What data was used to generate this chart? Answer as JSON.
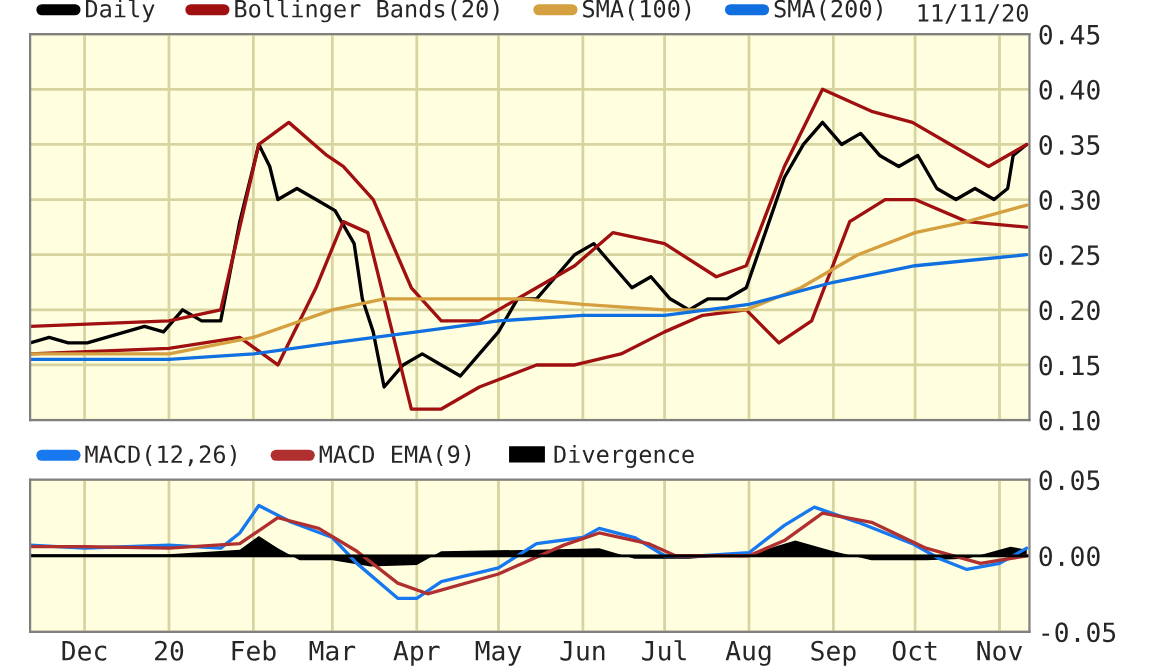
{
  "chart_data": [
    {
      "type": "line",
      "annotations": [
        "11/11/20"
      ],
      "legend": "top",
      "grid": true,
      "tick_labels": "y",
      "xlim": [
        "2019-11-11",
        "2020-11-12"
      ],
      "xticks": [
        {
          "value": "2019-12-01",
          "label": null
        },
        {
          "value": "2020-01-01",
          "label": null
        },
        {
          "value": "2020-02-01",
          "label": null
        },
        {
          "value": "2020-03-01",
          "label": null
        },
        {
          "value": "2020-04-01",
          "label": null
        },
        {
          "value": "2020-05-01",
          "label": null
        },
        {
          "value": "2020-06-01",
          "label": null
        },
        {
          "value": "2020-07-01",
          "label": null
        },
        {
          "value": "2020-08-01",
          "label": null
        },
        {
          "value": "2020-09-01",
          "label": null
        },
        {
          "value": "2020-10-01",
          "label": null
        },
        {
          "value": "2020-11-01",
          "label": null
        }
      ],
      "ylim": [
        0.1,
        0.45
      ],
      "yticks": [
        {
          "value": 0.1,
          "label": "0.10"
        },
        {
          "value": 0.15,
          "label": "0.15"
        },
        {
          "value": 0.2,
          "label": "0.20"
        },
        {
          "value": 0.25,
          "label": "0.25"
        },
        {
          "value": 0.3,
          "label": "0.30"
        },
        {
          "value": 0.35,
          "label": "0.35"
        },
        {
          "value": 0.4,
          "label": "0.40"
        },
        {
          "value": 0.45,
          "label": "0.45"
        }
      ],
      "series": [
        {
          "name": "Daily",
          "color": "#000000",
          "x": [
            "2019-11-11",
            "2019-11-18",
            "2019-11-25",
            "2019-12-02",
            "2019-12-09",
            "2019-12-16",
            "2019-12-23",
            "2019-12-30",
            "2020-01-06",
            "2020-01-13",
            "2020-01-20",
            "2020-01-27",
            "2020-02-03",
            "2020-02-07",
            "2020-02-10",
            "2020-02-17",
            "2020-02-24",
            "2020-03-02",
            "2020-03-09",
            "2020-03-12",
            "2020-03-16",
            "2020-03-20",
            "2020-03-27",
            "2020-04-03",
            "2020-04-10",
            "2020-04-17",
            "2020-04-24",
            "2020-05-01",
            "2020-05-08",
            "2020-05-15",
            "2020-05-22",
            "2020-05-29",
            "2020-06-05",
            "2020-06-12",
            "2020-06-19",
            "2020-06-26",
            "2020-07-03",
            "2020-07-10",
            "2020-07-17",
            "2020-07-24",
            "2020-07-31",
            "2020-08-07",
            "2020-08-14",
            "2020-08-21",
            "2020-08-28",
            "2020-09-04",
            "2020-09-11",
            "2020-09-18",
            "2020-09-25",
            "2020-10-02",
            "2020-10-09",
            "2020-10-16",
            "2020-10-23",
            "2020-10-30",
            "2020-11-04",
            "2020-11-06",
            "2020-11-11"
          ],
          "values": [
            0.17,
            0.175,
            0.17,
            0.17,
            0.175,
            0.18,
            0.185,
            0.18,
            0.2,
            0.19,
            0.19,
            0.28,
            0.35,
            0.33,
            0.3,
            0.31,
            0.3,
            0.29,
            0.26,
            0.21,
            0.18,
            0.13,
            0.15,
            0.16,
            0.15,
            0.14,
            0.16,
            0.18,
            0.21,
            0.21,
            0.23,
            0.25,
            0.26,
            0.24,
            0.22,
            0.23,
            0.21,
            0.2,
            0.21,
            0.21,
            0.22,
            0.27,
            0.32,
            0.35,
            0.37,
            0.35,
            0.36,
            0.34,
            0.33,
            0.34,
            0.31,
            0.3,
            0.31,
            0.3,
            0.31,
            0.34,
            0.35
          ]
        },
        {
          "name": "Bollinger Bands(20)",
          "color": "#a01010",
          "x": [
            "2019-11-11",
            "2020-01-01",
            "2020-01-20",
            "2020-02-03",
            "2020-02-14",
            "2020-02-28",
            "2020-03-05",
            "2020-03-16",
            "2020-03-30",
            "2020-04-10",
            "2020-04-24",
            "2020-05-08",
            "2020-05-29",
            "2020-06-12",
            "2020-07-01",
            "2020-07-20",
            "2020-07-31",
            "2020-08-14",
            "2020-08-28",
            "2020-09-15",
            "2020-09-30",
            "2020-10-14",
            "2020-10-28",
            "2020-11-11"
          ],
          "values": [
            0.185,
            0.19,
            0.2,
            0.35,
            0.37,
            0.34,
            0.33,
            0.3,
            0.22,
            0.19,
            0.19,
            0.21,
            0.24,
            0.27,
            0.26,
            0.23,
            0.24,
            0.33,
            0.4,
            0.38,
            0.37,
            0.35,
            0.33,
            0.35
          ]
        },
        {
          "color": "#a01010",
          "x": [
            "2019-11-11",
            "2020-01-01",
            "2020-01-27",
            "2020-02-10",
            "2020-02-24",
            "2020-03-05",
            "2020-03-14",
            "2020-03-30",
            "2020-04-10",
            "2020-04-24",
            "2020-05-15",
            "2020-05-29",
            "2020-06-15",
            "2020-07-01",
            "2020-07-15",
            "2020-07-31",
            "2020-08-12",
            "2020-08-24",
            "2020-09-07",
            "2020-09-20",
            "2020-10-01",
            "2020-10-20",
            "2020-11-11"
          ],
          "values": [
            0.16,
            0.165,
            0.175,
            0.15,
            0.22,
            0.28,
            0.27,
            0.11,
            0.11,
            0.13,
            0.15,
            0.15,
            0.16,
            0.18,
            0.195,
            0.2,
            0.17,
            0.19,
            0.28,
            0.3,
            0.3,
            0.28,
            0.275
          ]
        },
        {
          "name": "SMA(100)",
          "color": "#d4a040",
          "x": [
            "2019-11-11",
            "2020-01-01",
            "2020-02-01",
            "2020-03-01",
            "2020-03-20",
            "2020-04-10",
            "2020-05-10",
            "2020-06-01",
            "2020-07-01",
            "2020-07-31",
            "2020-08-20",
            "2020-09-10",
            "2020-10-01",
            "2020-10-20",
            "2020-11-11"
          ],
          "values": [
            0.16,
            0.16,
            0.175,
            0.2,
            0.21,
            0.21,
            0.21,
            0.205,
            0.2,
            0.2,
            0.22,
            0.25,
            0.27,
            0.28,
            0.295
          ]
        },
        {
          "name": "SMA(200)",
          "color": "#1070e0",
          "x": [
            "2019-11-11",
            "2020-01-01",
            "2020-02-01",
            "2020-03-01",
            "2020-04-01",
            "2020-05-01",
            "2020-06-01",
            "2020-07-01",
            "2020-08-01",
            "2020-09-01",
            "2020-10-01",
            "2020-11-11"
          ],
          "values": [
            0.155,
            0.155,
            0.16,
            0.17,
            0.18,
            0.19,
            0.195,
            0.195,
            0.205,
            0.225,
            0.24,
            0.25
          ]
        }
      ]
    },
    {
      "type": "line",
      "legend": "top",
      "grid": true,
      "xlim": [
        "2019-11-11",
        "2020-11-12"
      ],
      "xticks": [
        {
          "value": "2019-12-01",
          "label": "Dec"
        },
        {
          "value": "2020-01-01",
          "label": "20"
        },
        {
          "value": "2020-02-01",
          "label": "Feb"
        },
        {
          "value": "2020-03-01",
          "label": "Mar"
        },
        {
          "value": "2020-04-01",
          "label": "Apr"
        },
        {
          "value": "2020-05-01",
          "label": "May"
        },
        {
          "value": "2020-06-01",
          "label": "Jun"
        },
        {
          "value": "2020-07-01",
          "label": "Jul"
        },
        {
          "value": "2020-08-01",
          "label": "Aug"
        },
        {
          "value": "2020-09-01",
          "label": "Sep"
        },
        {
          "value": "2020-10-01",
          "label": "Oct"
        },
        {
          "value": "2020-11-01",
          "label": "Nov"
        }
      ],
      "ylim": [
        -0.05,
        0.05
      ],
      "yticks": [
        {
          "value": -0.05,
          "label": "-0.05"
        },
        {
          "value": 0,
          "label": "0.00"
        },
        {
          "value": 0.05,
          "label": "0.05"
        }
      ],
      "series": [
        {
          "name": "MACD(12,26)",
          "color": "#1878f0",
          "x": [
            "2019-11-11",
            "2019-12-01",
            "2020-01-01",
            "2020-01-20",
            "2020-01-27",
            "2020-02-03",
            "2020-02-15",
            "2020-03-01",
            "2020-03-10",
            "2020-03-25",
            "2020-04-01",
            "2020-04-10",
            "2020-05-01",
            "2020-05-15",
            "2020-06-01",
            "2020-06-07",
            "2020-06-20",
            "2020-07-01",
            "2020-07-15",
            "2020-08-01",
            "2020-08-14",
            "2020-08-25",
            "2020-09-10",
            "2020-09-30",
            "2020-10-10",
            "2020-10-20",
            "2020-11-01",
            "2020-11-11"
          ],
          "values": [
            0.007,
            0.005,
            0.007,
            0.005,
            0.015,
            0.033,
            0.022,
            0.012,
            -0.005,
            -0.028,
            -0.028,
            -0.017,
            -0.008,
            0.008,
            0.012,
            0.018,
            0.012,
            0.0,
            0.0,
            0.002,
            0.02,
            0.032,
            0.022,
            0.008,
            -0.002,
            -0.009,
            -0.005,
            0.005
          ]
        },
        {
          "name": "MACD EMA(9)",
          "color": "#b03030",
          "x": [
            "2019-11-11",
            "2019-12-01",
            "2020-01-01",
            "2020-01-27",
            "2020-02-10",
            "2020-02-25",
            "2020-03-10",
            "2020-03-25",
            "2020-04-05",
            "2020-05-01",
            "2020-05-25",
            "2020-06-07",
            "2020-06-25",
            "2020-07-05",
            "2020-08-01",
            "2020-08-14",
            "2020-08-28",
            "2020-09-15",
            "2020-10-05",
            "2020-10-25",
            "2020-11-11"
          ],
          "values": [
            0.006,
            0.006,
            0.005,
            0.008,
            0.025,
            0.018,
            0.003,
            -0.018,
            -0.025,
            -0.012,
            0.007,
            0.015,
            0.008,
            0.0,
            0.0,
            0.01,
            0.028,
            0.022,
            0.005,
            -0.005,
            0.0
          ]
        },
        {
          "name": "Divergence",
          "type": "area",
          "color": "#000000",
          "x": [
            "2019-11-11",
            "2020-01-01",
            "2020-01-27",
            "2020-02-03",
            "2020-02-10",
            "2020-02-18",
            "2020-03-01",
            "2020-03-15",
            "2020-04-01",
            "2020-04-10",
            "2020-05-15",
            "2020-06-07",
            "2020-06-20",
            "2020-07-10",
            "2020-08-01",
            "2020-08-18",
            "2020-09-01",
            "2020-09-15",
            "2020-10-05",
            "2020-10-20",
            "2020-11-05",
            "2020-11-11"
          ],
          "values": [
            0.001,
            0.001,
            0.004,
            0.013,
            0.005,
            -0.003,
            -0.003,
            -0.007,
            -0.006,
            0.003,
            0.004,
            0.005,
            -0.002,
            -0.002,
            0.001,
            0.01,
            0.003,
            -0.003,
            -0.003,
            -0.002,
            0.006,
            0.004
          ]
        }
      ]
    }
  ]
}
